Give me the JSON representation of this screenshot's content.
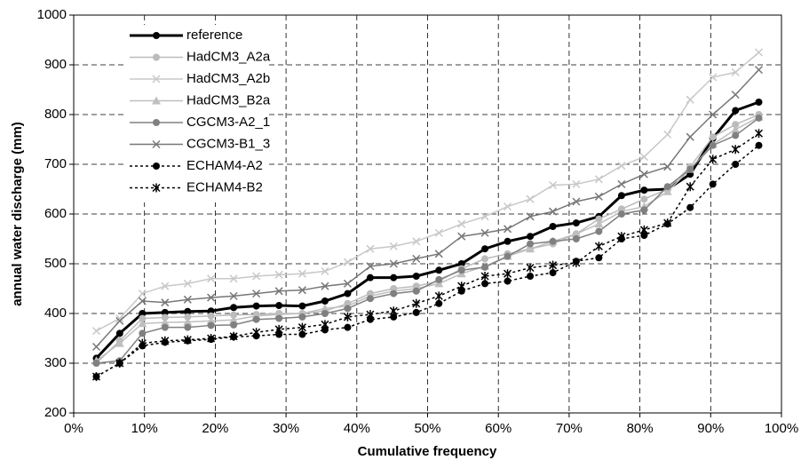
{
  "chart_data": {
    "type": "line",
    "xlabel": "Cumulative frequency",
    "ylabel": "annual water discharge (mm)",
    "x": [
      3.2,
      6.5,
      9.7,
      12.9,
      16.1,
      19.4,
      22.6,
      25.8,
      29.0,
      32.3,
      35.5,
      38.7,
      41.9,
      45.2,
      48.4,
      51.6,
      54.8,
      58.1,
      61.3,
      64.5,
      67.7,
      71.0,
      74.2,
      77.4,
      80.6,
      83.9,
      87.1,
      90.3,
      93.5,
      96.8
    ],
    "xlim": [
      0,
      100
    ],
    "xticks": [
      {
        "value": 0,
        "label": "0%"
      },
      {
        "value": 10,
        "label": "10%"
      },
      {
        "value": 20,
        "label": "20%"
      },
      {
        "value": 30,
        "label": "30%"
      },
      {
        "value": 40,
        "label": "40%"
      },
      {
        "value": 50,
        "label": "50%"
      },
      {
        "value": 60,
        "label": "60%"
      },
      {
        "value": 70,
        "label": "70%"
      },
      {
        "value": 80,
        "label": "80%"
      },
      {
        "value": 90,
        "label": "90%"
      },
      {
        "value": 100,
        "label": "100%"
      }
    ],
    "ylim": [
      200,
      1000
    ],
    "yticks": [
      200,
      300,
      400,
      500,
      600,
      700,
      800,
      900,
      1000
    ],
    "grid": true,
    "legend": "upper-left",
    "series": [
      {
        "name": "reference",
        "color": "#000000",
        "marker": "circle",
        "dash": "solid",
        "width": 3,
        "values": [
          310,
          360,
          400,
          402,
          404,
          405,
          412,
          415,
          416,
          415,
          425,
          440,
          472,
          472,
          475,
          487,
          500,
          530,
          545,
          555,
          575,
          582,
          595,
          637,
          648,
          650,
          680,
          752,
          808,
          825
        ]
      },
      {
        "name": "HadCM3_A2a",
        "color": "#bbbbbb",
        "marker": "circle",
        "dash": "solid",
        "width": 1.5,
        "values": [
          300,
          345,
          390,
          392,
          393,
          395,
          397,
          398,
          400,
          400,
          405,
          420,
          440,
          450,
          455,
          465,
          490,
          510,
          520,
          530,
          540,
          560,
          590,
          610,
          630,
          650,
          695,
          755,
          780,
          800
        ]
      },
      {
        "name": "HadCM3_A2b",
        "color": "#c8c8c8",
        "marker": "cross",
        "dash": "solid",
        "width": 1.5,
        "values": [
          365,
          390,
          440,
          455,
          460,
          470,
          470,
          475,
          478,
          480,
          485,
          503,
          530,
          535,
          545,
          562,
          580,
          595,
          615,
          630,
          658,
          660,
          670,
          697,
          715,
          760,
          830,
          875,
          885,
          925
        ]
      },
      {
        "name": "HadCM3_B2a",
        "color": "#bfbfbf",
        "marker": "triangle",
        "dash": "solid",
        "width": 1.5,
        "values": [
          305,
          340,
          380,
          382,
          383,
          385,
          387,
          395,
          398,
          400,
          410,
          415,
          435,
          445,
          450,
          460,
          480,
          495,
          515,
          530,
          545,
          560,
          580,
          605,
          615,
          645,
          690,
          740,
          770,
          795
        ]
      },
      {
        "name": "CGCM3-A2_1",
        "color": "#808080",
        "marker": "circle",
        "dash": "solid",
        "width": 1.5,
        "values": [
          300,
          305,
          360,
          372,
          372,
          376,
          377,
          388,
          390,
          393,
          400,
          410,
          430,
          440,
          445,
          468,
          487,
          493,
          515,
          540,
          545,
          550,
          565,
          600,
          608,
          655,
          690,
          738,
          758,
          793
        ]
      },
      {
        "name": "CGCM3-B1_3",
        "color": "#777777",
        "marker": "cross",
        "dash": "solid",
        "width": 1.5,
        "values": [
          333,
          385,
          425,
          422,
          428,
          432,
          435,
          440,
          445,
          447,
          455,
          460,
          495,
          500,
          510,
          520,
          555,
          562,
          570,
          595,
          605,
          625,
          635,
          660,
          680,
          695,
          755,
          800,
          840,
          890
        ]
      },
      {
        "name": "ECHAM4-A2",
        "color": "#000000",
        "marker": "circle",
        "dash": "dotted",
        "width": 1.5,
        "values": [
          273,
          300,
          335,
          342,
          345,
          348,
          353,
          355,
          358,
          358,
          367,
          372,
          388,
          393,
          402,
          420,
          445,
          460,
          465,
          475,
          482,
          505,
          512,
          550,
          557,
          580,
          613,
          660,
          700,
          738
        ]
      },
      {
        "name": "ECHAM4-B2",
        "color": "#000000",
        "marker": "star",
        "dash": "dotted",
        "width": 1.5,
        "values": [
          273,
          300,
          340,
          345,
          347,
          350,
          354,
          362,
          368,
          372,
          378,
          393,
          398,
          405,
          420,
          435,
          455,
          475,
          480,
          492,
          497,
          502,
          535,
          555,
          568,
          582,
          655,
          710,
          730,
          762
        ]
      }
    ]
  }
}
